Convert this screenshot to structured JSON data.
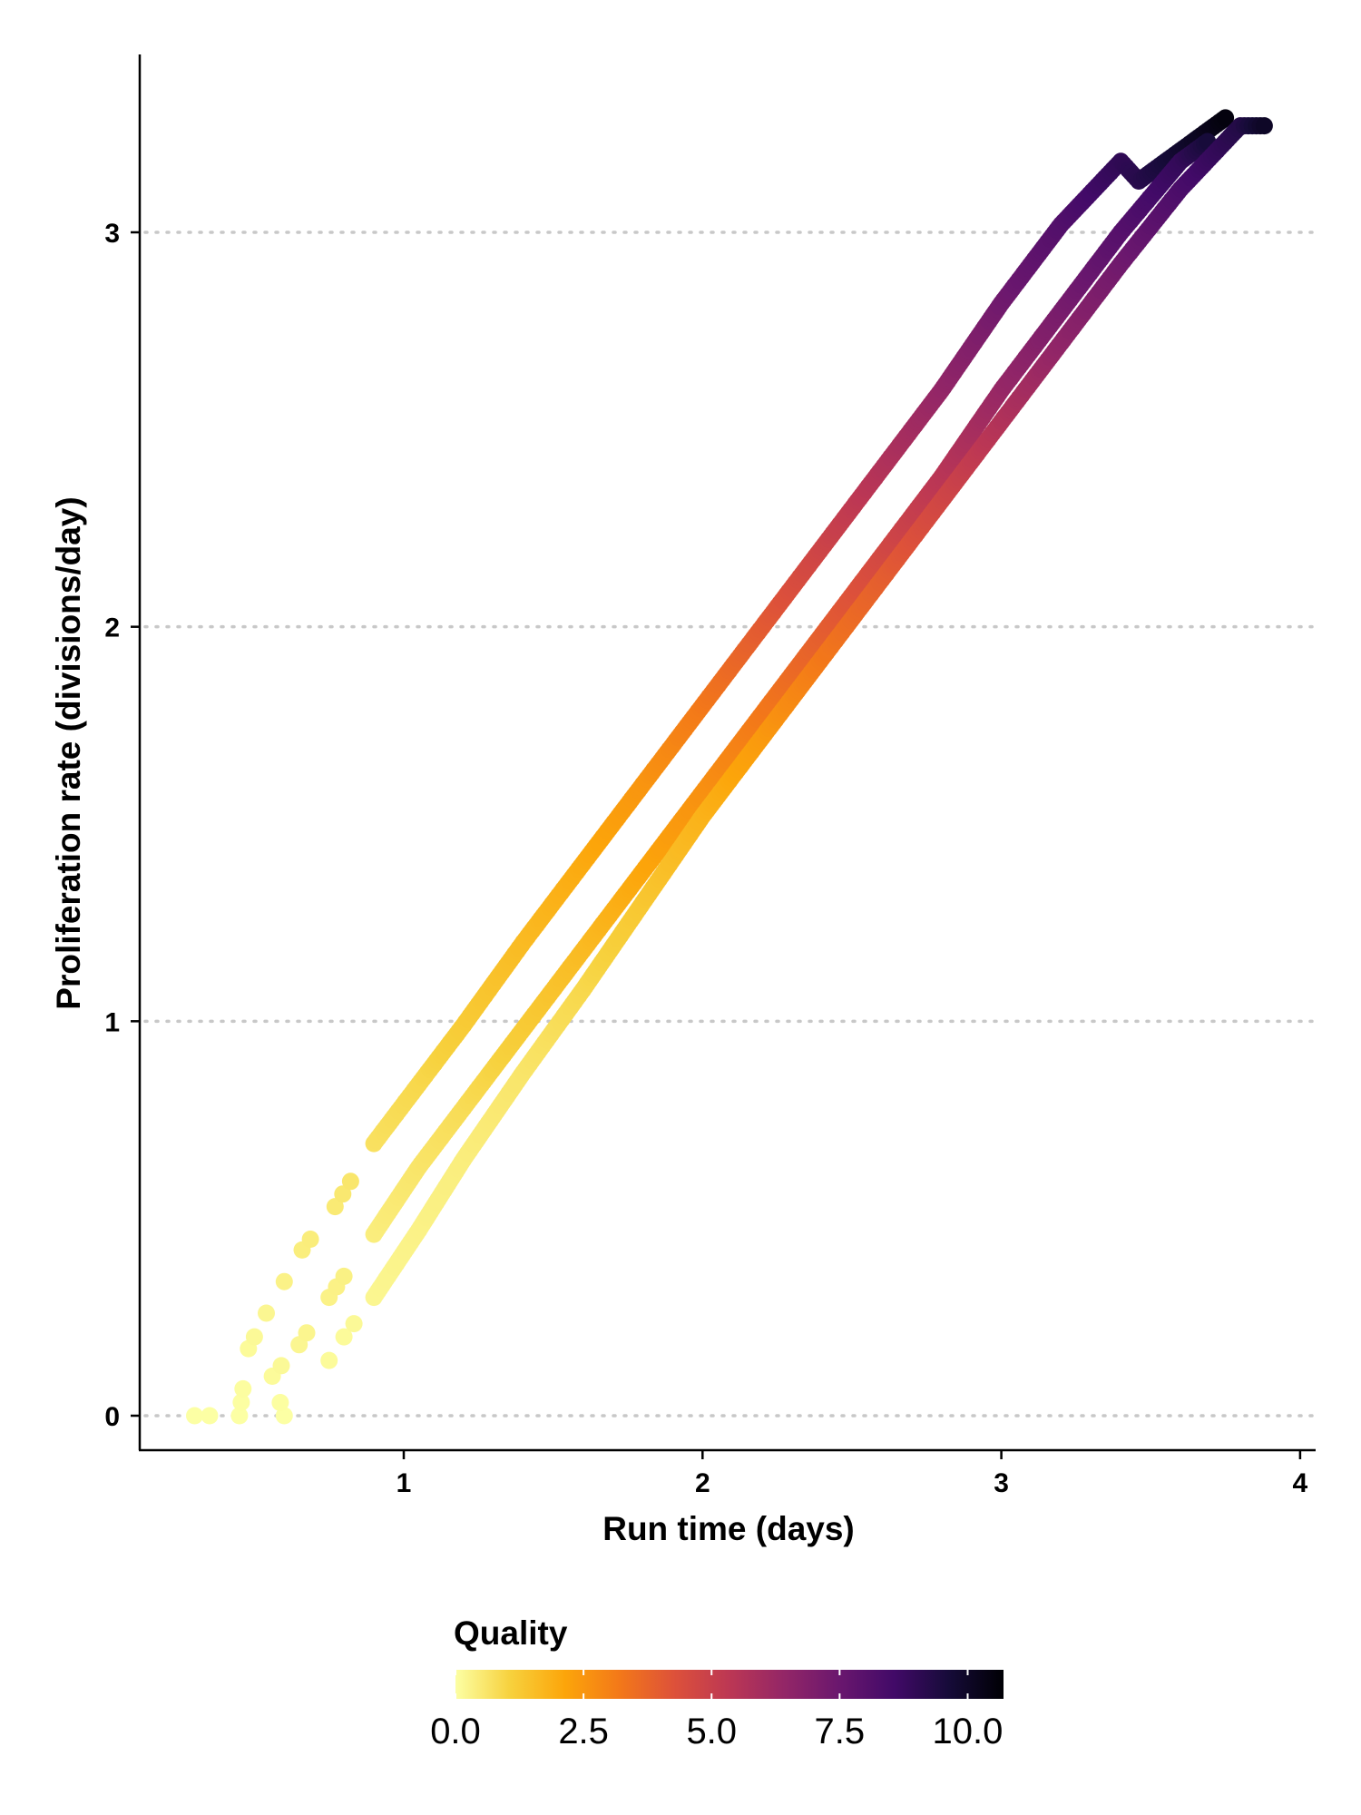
{
  "chart_data": {
    "type": "scatter",
    "title": "",
    "xlabel": "Run time (days)",
    "ylabel": "Proliferation rate (divisions/day)",
    "xlim": [
      0.1,
      4.05
    ],
    "ylim": [
      -0.17,
      3.45
    ],
    "x_ticks": [
      {
        "value": 1,
        "label": "1"
      },
      {
        "value": 2,
        "label": "2"
      },
      {
        "value": 3,
        "label": "3"
      },
      {
        "value": 4,
        "label": "4"
      }
    ],
    "y_ticks": [
      {
        "value": 0,
        "label": "0"
      },
      {
        "value": 1,
        "label": "1"
      },
      {
        "value": 2,
        "label": "2"
      },
      {
        "value": 3,
        "label": "3"
      }
    ],
    "grid": "horizontal dotted",
    "color_scale": {
      "title": "Quality",
      "range": [
        0,
        10.7
      ],
      "ticks": [
        {
          "value": 0,
          "label": "0.0"
        },
        {
          "value": 2.5,
          "label": "2.5"
        },
        {
          "value": 5,
          "label": "5.0"
        },
        {
          "value": 7.5,
          "label": "7.5"
        },
        {
          "value": 10,
          "label": "10.0"
        }
      ],
      "palette": [
        "#fcffa4",
        "#f7d13d",
        "#fca50a",
        "#f37819",
        "#dd513a",
        "#bc3754",
        "#932667",
        "#6a176e",
        "#420a68",
        "#160b39",
        "#000004"
      ],
      "position": "bottom"
    },
    "series": [
      {
        "points": [
          [
            0.3,
            0
          ],
          [
            0.45,
            0
          ],
          [
            0.48,
            0.17
          ],
          [
            0.54,
            0.26
          ],
          [
            0.6,
            0.34
          ],
          [
            0.66,
            0.42
          ],
          [
            0.77,
            0.53
          ],
          [
            0.9,
            0.69
          ],
          [
            1.05,
            0.84
          ],
          [
            1.2,
            0.99
          ],
          [
            1.4,
            1.2
          ],
          [
            1.6,
            1.4
          ],
          [
            1.8,
            1.6
          ],
          [
            2.0,
            1.8
          ],
          [
            2.2,
            2.0
          ],
          [
            2.4,
            2.2
          ],
          [
            2.6,
            2.4
          ],
          [
            2.8,
            2.6
          ],
          [
            3.0,
            2.82
          ],
          [
            3.2,
            3.02
          ],
          [
            3.4,
            3.18
          ],
          [
            3.46,
            3.13
          ],
          [
            3.75,
            3.29
          ]
        ],
        "color_values": [
          0,
          0,
          0.1,
          0.2,
          0.3,
          0.4,
          0.5,
          0.7,
          0.9,
          1.2,
          1.6,
          2.0,
          2.5,
          3.2,
          4.0,
          4.8,
          5.6,
          6.4,
          7.3,
          8.1,
          9.0,
          9.2,
          10.5
        ]
      },
      {
        "points": [
          [
            0.6,
            0
          ],
          [
            0.56,
            0.1
          ],
          [
            0.65,
            0.18
          ],
          [
            0.75,
            0.3
          ],
          [
            0.9,
            0.46
          ],
          [
            1.05,
            0.63
          ],
          [
            1.2,
            0.78
          ],
          [
            1.4,
            0.98
          ],
          [
            1.6,
            1.18
          ],
          [
            1.8,
            1.38
          ],
          [
            2.0,
            1.58
          ],
          [
            2.2,
            1.78
          ],
          [
            2.4,
            1.98
          ],
          [
            2.6,
            2.18
          ],
          [
            2.8,
            2.38
          ],
          [
            3.0,
            2.6
          ],
          [
            3.2,
            2.8
          ],
          [
            3.4,
            3.0
          ],
          [
            3.6,
            3.18
          ],
          [
            3.69,
            3.23
          ]
        ],
        "color_values": [
          0,
          0.1,
          0.2,
          0.3,
          0.4,
          0.6,
          0.8,
          1.2,
          1.6,
          2.1,
          2.6,
          3.2,
          3.9,
          4.6,
          5.4,
          6.3,
          7.1,
          8.0,
          8.9,
          9.6
        ]
      },
      {
        "points": [
          [
            0.75,
            0.14
          ],
          [
            0.8,
            0.2
          ],
          [
            0.9,
            0.3
          ],
          [
            1.05,
            0.47
          ],
          [
            1.2,
            0.65
          ],
          [
            1.4,
            0.87
          ],
          [
            1.6,
            1.08
          ],
          [
            1.8,
            1.3
          ],
          [
            2.0,
            1.52
          ],
          [
            2.2,
            1.72
          ],
          [
            2.4,
            1.92
          ],
          [
            2.6,
            2.12
          ],
          [
            2.8,
            2.32
          ],
          [
            3.0,
            2.52
          ],
          [
            3.2,
            2.72
          ],
          [
            3.4,
            2.92
          ],
          [
            3.6,
            3.11
          ],
          [
            3.8,
            3.27
          ],
          [
            3.88,
            3.27
          ]
        ],
        "color_values": [
          0.1,
          0.1,
          0.2,
          0.3,
          0.4,
          0.6,
          0.9,
          1.3,
          1.8,
          2.4,
          3.2,
          3.9,
          4.7,
          5.6,
          6.5,
          7.3,
          8.3,
          9.3,
          10.0
        ]
      }
    ]
  }
}
